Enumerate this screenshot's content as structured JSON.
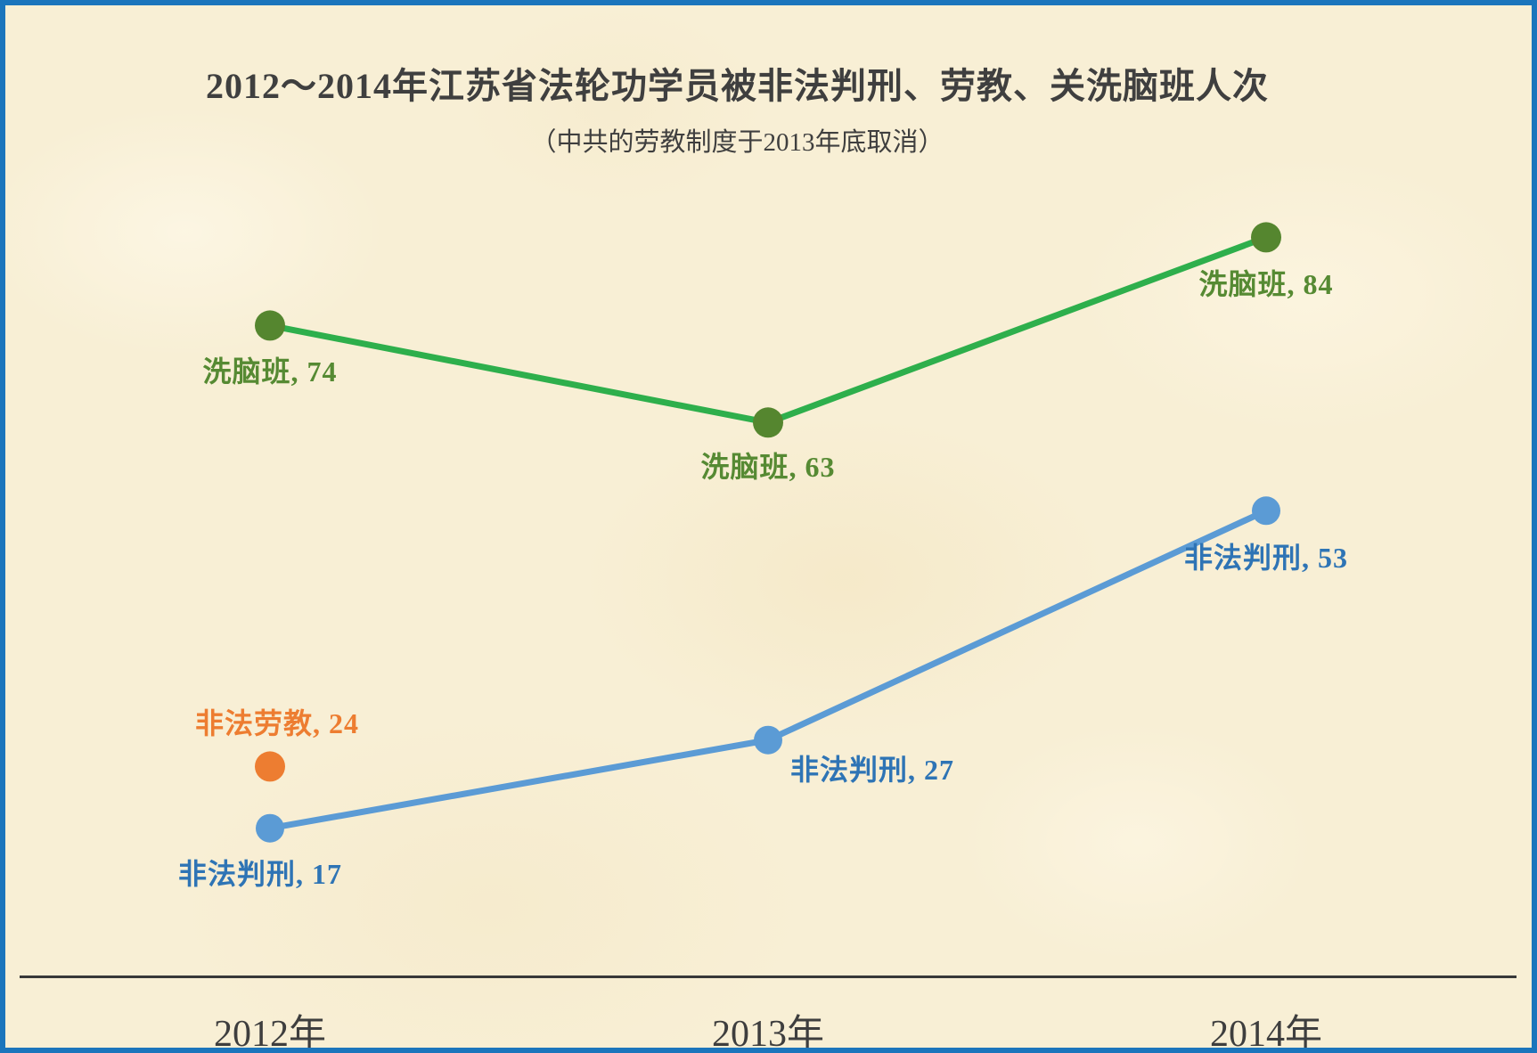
{
  "page": {
    "background_color": "#f8efd5",
    "border_color": "#1b75bc",
    "axis_color": "#383838",
    "text_color": "#3f3f3f"
  },
  "chart_data": {
    "type": "line",
    "title": "2012～2014年江苏省法轮功学员被非法判刑、劳教、关洗脑班人次",
    "subtitle": "（中共的劳教制度于2013年底取消）",
    "categories": [
      "2012年",
      "2013年",
      "2014年"
    ],
    "series": [
      {
        "name": "洗脑班",
        "values": [
          74,
          63,
          84
        ],
        "line_color": "#2eaf4c",
        "dot_color": "#55862f",
        "label_color": "#568a33",
        "data_labels": [
          "洗脑班, 74",
          "洗脑班, 63",
          "洗脑班, 84"
        ]
      },
      {
        "name": "非法判刑",
        "values": [
          17,
          27,
          53
        ],
        "line_color": "#5b9bd5",
        "dot_color": "#5b9bd5",
        "label_color": "#2e74b5",
        "data_labels": [
          "非法判刑, 17",
          "非法判刑, 27",
          "非法判刑, 53"
        ]
      },
      {
        "name": "非法劳教",
        "values": [
          24,
          null,
          null
        ],
        "line_color": "#ed7d31",
        "dot_color": "#ed7d31",
        "label_color": "#ed7d31",
        "data_labels": [
          "非法劳教, 24",
          null,
          null
        ]
      }
    ],
    "ylim": [
      0,
      110
    ],
    "grid": false,
    "legend": false
  }
}
